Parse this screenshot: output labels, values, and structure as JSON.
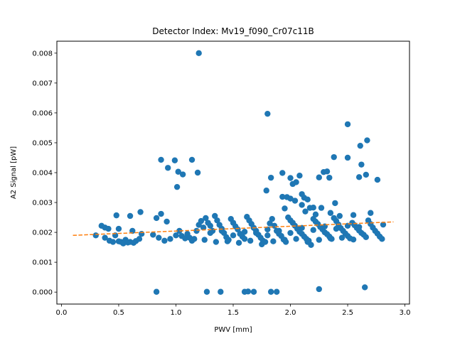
{
  "chart_data": {
    "type": "scatter",
    "title": "Detector Index: Mv19_f090_Cr07c11B",
    "xlabel": "PWV [mm]",
    "ylabel": "A2 Signal [pW]",
    "xlim": [
      -0.04,
      3.04
    ],
    "ylim": [
      -0.0004,
      0.0084
    ],
    "xticks": [
      0.0,
      0.5,
      1.0,
      1.5,
      2.0,
      2.5,
      3.0
    ],
    "xtick_labels": [
      "0.0",
      "0.5",
      "1.0",
      "1.5",
      "2.0",
      "2.5",
      "3.0"
    ],
    "yticks": [
      0.0,
      0.001,
      0.002,
      0.003,
      0.004,
      0.005,
      0.006,
      0.007,
      0.008
    ],
    "ytick_labels": [
      "0.000",
      "0.001",
      "0.002",
      "0.003",
      "0.004",
      "0.005",
      "0.006",
      "0.007",
      "0.008"
    ],
    "grid": false,
    "colors": {
      "points": "#1f77b4",
      "fit": "#ff7f0e"
    },
    "fit": {
      "style": "dashed",
      "x": [
        0.1,
        2.9
      ],
      "y": [
        0.0019,
        0.00235
      ]
    },
    "series": [
      {
        "points": [
          [
            1.2,
            0.008
          ],
          [
            1.8,
            0.00597
          ],
          [
            2.5,
            0.00562
          ],
          [
            2.67,
            0.00508
          ],
          [
            2.61,
            0.0049
          ],
          [
            2.5,
            0.0045
          ],
          [
            2.38,
            0.00452
          ],
          [
            0.87,
            0.00443
          ],
          [
            1.14,
            0.00443
          ],
          [
            0.99,
            0.00441
          ],
          [
            0.93,
            0.00416
          ],
          [
            1.02,
            0.00403
          ],
          [
            1.06,
            0.00394
          ],
          [
            1.19,
            0.004
          ],
          [
            1.01,
            0.00352
          ],
          [
            1.83,
            0.00383
          ],
          [
            1.79,
            0.0034
          ],
          [
            1.93,
            0.00399
          ],
          [
            2.0,
            0.00382
          ],
          [
            2.08,
            0.0039
          ],
          [
            2.02,
            0.00362
          ],
          [
            2.05,
            0.00368
          ],
          [
            2.25,
            0.00384
          ],
          [
            2.29,
            0.00402
          ],
          [
            2.32,
            0.00404
          ],
          [
            2.34,
            0.00383
          ],
          [
            2.6,
            0.00385
          ],
          [
            2.62,
            0.00427
          ],
          [
            2.66,
            0.00393
          ],
          [
            2.76,
            0.00376
          ],
          [
            1.93,
            0.00319
          ],
          [
            1.97,
            0.00318
          ],
          [
            2.0,
            0.00313
          ],
          [
            2.04,
            0.00306
          ],
          [
            2.1,
            0.00328
          ],
          [
            2.12,
            0.00316
          ],
          [
            2.15,
            0.0031
          ],
          [
            2.39,
            0.00298
          ],
          [
            2.1,
            0.00292
          ],
          [
            2.17,
            0.00282
          ],
          [
            2.2,
            0.00283
          ],
          [
            2.27,
            0.00282
          ],
          [
            1.95,
            0.0028
          ],
          [
            2.13,
            0.0027
          ],
          [
            2.22,
            0.0026
          ],
          [
            2.35,
            0.00265
          ],
          [
            2.55,
            0.00258
          ],
          [
            2.7,
            0.00265
          ],
          [
            2.43,
            0.00255
          ],
          [
            0.48,
            0.00257
          ],
          [
            0.6,
            0.00255
          ],
          [
            0.69,
            0.00268
          ],
          [
            0.83,
            0.00248
          ],
          [
            0.87,
            0.00262
          ],
          [
            0.92,
            0.00236
          ],
          [
            0.35,
            0.00222
          ],
          [
            0.38,
            0.00216
          ],
          [
            0.41,
            0.00212
          ],
          [
            0.5,
            0.00212
          ],
          [
            0.62,
            0.00205
          ],
          [
            0.3,
            0.0019
          ],
          [
            0.38,
            0.00182
          ],
          [
            0.42,
            0.00172
          ],
          [
            0.45,
            0.00168
          ],
          [
            0.47,
            0.0019
          ],
          [
            0.5,
            0.0017
          ],
          [
            0.52,
            0.00168
          ],
          [
            0.54,
            0.00163
          ],
          [
            0.56,
            0.00175
          ],
          [
            0.58,
            0.00166
          ],
          [
            0.6,
            0.00168
          ],
          [
            0.63,
            0.00165
          ],
          [
            0.65,
            0.00171
          ],
          [
            0.68,
            0.00178
          ],
          [
            0.7,
            0.00195
          ],
          [
            0.8,
            0.00192
          ],
          [
            0.85,
            0.00182
          ],
          [
            0.9,
            0.00172
          ],
          [
            0.95,
            0.00178
          ],
          [
            1.0,
            0.0019
          ],
          [
            1.03,
            0.00205
          ],
          [
            1.05,
            0.00188
          ],
          [
            1.08,
            0.0018
          ],
          [
            1.1,
            0.00195
          ],
          [
            1.12,
            0.00182
          ],
          [
            1.14,
            0.00172
          ],
          [
            1.16,
            0.00178
          ],
          [
            1.18,
            0.00205
          ],
          [
            1.2,
            0.00225
          ],
          [
            1.22,
            0.00238
          ],
          [
            1.24,
            0.00216
          ],
          [
            1.26,
            0.00248
          ],
          [
            1.28,
            0.00232
          ],
          [
            1.3,
            0.00222
          ],
          [
            1.32,
            0.00205
          ],
          [
            1.34,
            0.00255
          ],
          [
            1.36,
            0.0024
          ],
          [
            1.38,
            0.00225
          ],
          [
            1.4,
            0.00212
          ],
          [
            1.42,
            0.00198
          ],
          [
            1.44,
            0.00184
          ],
          [
            1.46,
            0.00175
          ],
          [
            1.48,
            0.00245
          ],
          [
            1.5,
            0.00232
          ],
          [
            1.52,
            0.0022
          ],
          [
            1.54,
            0.0021
          ],
          [
            1.56,
            0.00195
          ],
          [
            1.58,
            0.00186
          ],
          [
            1.6,
            0.00178
          ],
          [
            1.62,
            0.00252
          ],
          [
            1.64,
            0.0024
          ],
          [
            1.66,
            0.00228
          ],
          [
            1.68,
            0.00215
          ],
          [
            1.7,
            0.00205
          ],
          [
            1.72,
            0.00192
          ],
          [
            1.74,
            0.00182
          ],
          [
            1.76,
            0.00172
          ],
          [
            1.78,
            0.00168
          ],
          [
            1.8,
            0.0021
          ],
          [
            1.82,
            0.0023
          ],
          [
            1.84,
            0.00245
          ],
          [
            1.86,
            0.00222
          ],
          [
            1.88,
            0.00205
          ],
          [
            1.9,
            0.00195
          ],
          [
            1.92,
            0.00188
          ],
          [
            1.94,
            0.00176
          ],
          [
            1.96,
            0.00168
          ],
          [
            1.98,
            0.0025
          ],
          [
            2.0,
            0.0024
          ],
          [
            2.02,
            0.00232
          ],
          [
            2.04,
            0.00222
          ],
          [
            2.06,
            0.00212
          ],
          [
            2.08,
            0.00202
          ],
          [
            2.1,
            0.00195
          ],
          [
            2.12,
            0.00186
          ],
          [
            2.14,
            0.00178
          ],
          [
            2.16,
            0.00172
          ],
          [
            2.18,
            0.00158
          ],
          [
            2.2,
            0.00245
          ],
          [
            2.22,
            0.00236
          ],
          [
            2.24,
            0.00228
          ],
          [
            2.26,
            0.00218
          ],
          [
            2.28,
            0.0021
          ],
          [
            2.3,
            0.002
          ],
          [
            2.32,
            0.00194
          ],
          [
            2.34,
            0.00186
          ],
          [
            2.36,
            0.00178
          ],
          [
            2.38,
            0.00248
          ],
          [
            2.4,
            0.00238
          ],
          [
            2.42,
            0.00226
          ],
          [
            2.44,
            0.00214
          ],
          [
            2.46,
            0.00205
          ],
          [
            2.48,
            0.00196
          ],
          [
            2.5,
            0.00188
          ],
          [
            2.52,
            0.0018
          ],
          [
            2.54,
            0.00232
          ],
          [
            2.56,
            0.00224
          ],
          [
            2.58,
            0.00215
          ],
          [
            2.6,
            0.00206
          ],
          [
            2.62,
            0.00198
          ],
          [
            2.64,
            0.00192
          ],
          [
            2.66,
            0.00184
          ],
          [
            2.68,
            0.0024
          ],
          [
            2.7,
            0.00228
          ],
          [
            2.72,
            0.00216
          ],
          [
            2.74,
            0.00205
          ],
          [
            2.76,
            0.00196
          ],
          [
            2.78,
            0.00186
          ],
          [
            2.8,
            0.00178
          ],
          [
            2.81,
            0.00226
          ],
          [
            1.25,
            0.00175
          ],
          [
            1.35,
            0.00168
          ],
          [
            1.45,
            0.0017
          ],
          [
            1.55,
            0.00165
          ],
          [
            1.65,
            0.00172
          ],
          [
            1.75,
            0.0016
          ],
          [
            1.85,
            0.0017
          ],
          [
            1.95,
            0.00175
          ],
          [
            2.05,
            0.00178
          ],
          [
            2.15,
            0.00168
          ],
          [
            2.25,
            0.00175
          ],
          [
            2.35,
            0.0018
          ],
          [
            2.45,
            0.00182
          ],
          [
            2.55,
            0.00176
          ],
          [
            1.3,
            0.00198
          ],
          [
            1.4,
            0.00205
          ],
          [
            1.5,
            0.0019
          ],
          [
            1.6,
            0.00202
          ],
          [
            1.7,
            0.00198
          ],
          [
            1.8,
            0.0019
          ],
          [
            1.9,
            0.00205
          ],
          [
            2.0,
            0.00198
          ],
          [
            2.1,
            0.00215
          ],
          [
            2.2,
            0.00208
          ],
          [
            2.3,
            0.0022
          ],
          [
            2.4,
            0.00212
          ],
          [
            2.5,
            0.00222
          ],
          [
            2.6,
            0.00218
          ],
          [
            0.83,
            1e-05
          ],
          [
            1.27,
            1e-05
          ],
          [
            1.39,
            1e-05
          ],
          [
            1.6,
            1e-05
          ],
          [
            1.63,
            2e-05
          ],
          [
            1.68,
            1e-05
          ],
          [
            1.83,
            1e-05
          ],
          [
            1.88,
            1e-05
          ],
          [
            2.25,
            0.0001
          ],
          [
            2.65,
            0.00016
          ]
        ]
      }
    ]
  }
}
